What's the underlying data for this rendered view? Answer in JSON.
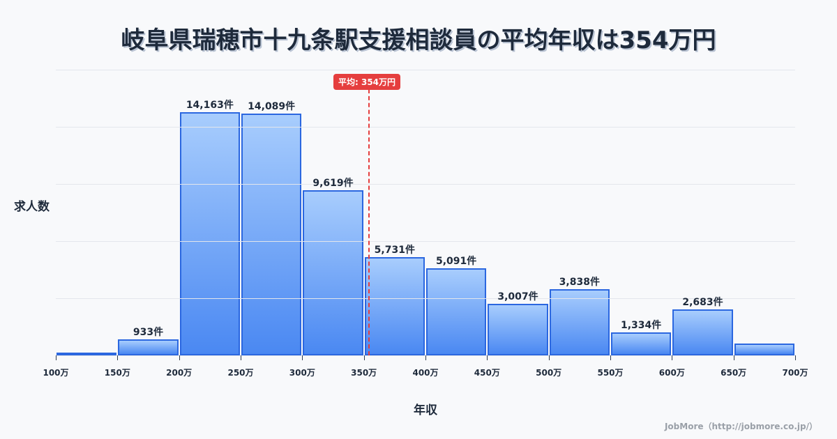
{
  "title": "岐阜県瑞穂市十九条駅支援相談員の平均年収は354万円",
  "average_badge": "平均: 354万円",
  "y_axis_label": "求人数",
  "x_axis_label": "年収",
  "credit": "JobMore（http://jobmore.co.jp/）",
  "colors": {
    "bar_fill_top": "#a8cdfd",
    "bar_fill_bottom": "#4a88f2",
    "bar_border": "#2b67e0",
    "average_line": "#e53e3e",
    "text": "#1e2a3b",
    "background": "#f8f9fb"
  },
  "chart_data": {
    "type": "bar",
    "title": "岐阜県瑞穂市十九条駅支援相談員の平均年収は354万円",
    "xlabel": "年収",
    "ylabel": "求人数",
    "categories": [
      "100万-150万",
      "150万-200万",
      "200万-250万",
      "250万-300万",
      "300万-350万",
      "350万-400万",
      "400万-450万",
      "450万-500万",
      "500万-550万",
      "550万-600万",
      "600万-650万",
      "650万-700万"
    ],
    "values": [
      80,
      933,
      14163,
      14089,
      9619,
      5731,
      5091,
      3007,
      3838,
      1334,
      2683,
      690
    ],
    "labels": [
      "",
      "933件",
      "14,163件",
      "14,089件",
      "9,619件",
      "5,731件",
      "5,091件",
      "3,007件",
      "3,838件",
      "1,334件",
      "2,683件",
      ""
    ],
    "x_ticks": [
      "100万",
      "150万",
      "200万",
      "250万",
      "300万",
      "350万",
      "400万",
      "450万",
      "500万",
      "550万",
      "600万",
      "650万",
      "700万"
    ],
    "ylim": [
      0,
      16640
    ],
    "grid": true,
    "average": {
      "value": 354,
      "label": "平均: 354万円"
    }
  }
}
